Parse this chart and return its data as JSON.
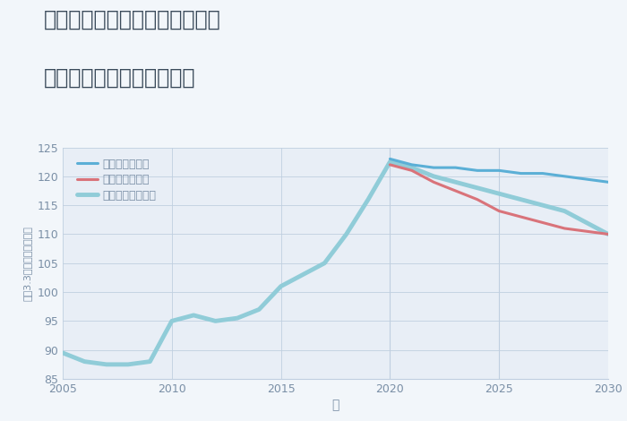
{
  "title_line1": "兵庫県姫路市飾磨区今在家北の",
  "title_line2": "中古マンションの価格推移",
  "xlabel": "年",
  "ylabel": "平（3.3㎡）単価（万円）",
  "bg_color": "#f2f6fa",
  "plot_bg_color": "#e8eef6",
  "grid_color": "#c0cfe0",
  "ylim": [
    85,
    125
  ],
  "yticks": [
    85,
    90,
    95,
    100,
    105,
    110,
    115,
    120,
    125
  ],
  "xlim": [
    2005,
    2030
  ],
  "xticks": [
    2005,
    2010,
    2015,
    2020,
    2025,
    2030
  ],
  "vline_x": 2020,
  "vline2_x": 2025,
  "legend_labels": [
    "グッドシナリオ",
    "バッドシナリオ",
    "ノーマルシナリオ"
  ],
  "good_color": "#5bafd6",
  "bad_color": "#d9737a",
  "normal_color": "#90ccd8",
  "good_years": [
    2020,
    2021,
    2022,
    2023,
    2024,
    2025,
    2026,
    2027,
    2028,
    2029,
    2030
  ],
  "good_values": [
    123,
    122,
    121.5,
    121.5,
    121,
    121,
    120.5,
    120.5,
    120,
    119.5,
    119
  ],
  "bad_years": [
    2020,
    2021,
    2022,
    2023,
    2024,
    2025,
    2026,
    2027,
    2028,
    2029,
    2030
  ],
  "bad_values": [
    122,
    121,
    119,
    117.5,
    116,
    114,
    113,
    112,
    111,
    110.5,
    110
  ],
  "normal_years": [
    2005,
    2006,
    2007,
    2008,
    2009,
    2010,
    2011,
    2012,
    2013,
    2014,
    2015,
    2016,
    2017,
    2018,
    2019,
    2020,
    2021,
    2022,
    2023,
    2024,
    2025,
    2026,
    2027,
    2028,
    2029,
    2030
  ],
  "normal_values": [
    89.5,
    88.0,
    87.5,
    87.5,
    88.0,
    95.0,
    96.0,
    95.0,
    95.5,
    97.0,
    101.0,
    103.0,
    105.0,
    110.0,
    116.0,
    122.5,
    121.5,
    120.0,
    119.0,
    118.0,
    117.0,
    116.0,
    115.0,
    114.0,
    112.0,
    110.0
  ]
}
